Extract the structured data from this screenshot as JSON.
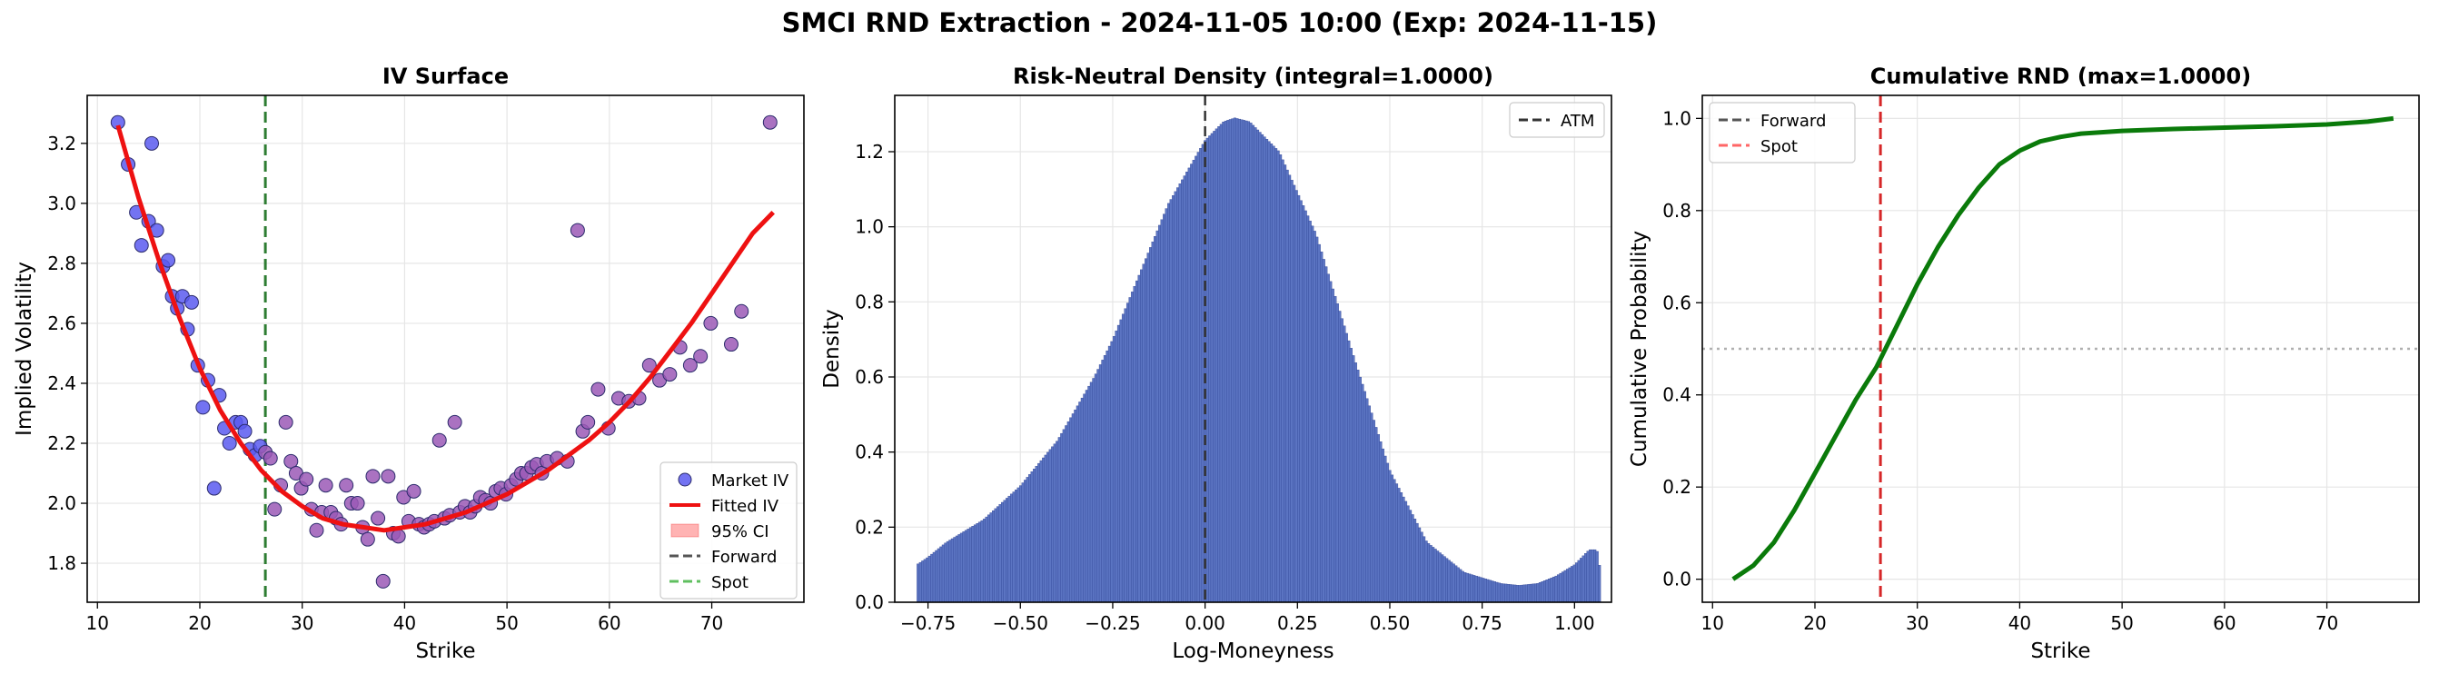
{
  "suptitle": "SMCI RND Extraction - 2024-11-05 10:00 (Exp: 2024-11-15)",
  "colors": {
    "market_face": "#5a5af0",
    "market_face_late": "#9b59b6",
    "market_edge": "#2c2c6c",
    "fitted": "#ee1111",
    "ci": "#ffb3b3",
    "forward": "#555555",
    "spot_green": "#5fbf5f",
    "spot_red": "#ff6666",
    "forward_line_iv": "#2e7d32",
    "bars": "#5b74c2",
    "bars_edge": "#2a3f8f",
    "atm": "#333333",
    "cdf": "#0a7a0a",
    "red_dash": "#d62728",
    "half_line": "#b0b0b0",
    "grid": "#e6e6e6"
  },
  "chart_data": [
    {
      "type": "scatter",
      "title": "IV Surface",
      "xlabel": "Strike",
      "ylabel": "Implied Volatility",
      "xlim": [
        9,
        79
      ],
      "ylim": [
        1.67,
        3.36
      ],
      "xticks": [
        10,
        20,
        30,
        40,
        50,
        60,
        70
      ],
      "yticks": [
        1.8,
        2.0,
        2.2,
        2.4,
        2.6,
        2.8,
        3.0,
        3.2
      ],
      "grid": true,
      "legend_position": "lower-right",
      "legend": [
        "Market IV",
        "Fitted IV",
        "95% CI",
        "Forward",
        "Spot"
      ],
      "forward_strike": 26.4,
      "market_points": [
        [
          12.0,
          3.27
        ],
        [
          13.0,
          3.13
        ],
        [
          13.8,
          2.97
        ],
        [
          14.3,
          2.86
        ],
        [
          15.0,
          2.94
        ],
        [
          15.3,
          3.2
        ],
        [
          15.8,
          2.91
        ],
        [
          16.4,
          2.79
        ],
        [
          16.9,
          2.81
        ],
        [
          17.3,
          2.69
        ],
        [
          17.8,
          2.65
        ],
        [
          18.3,
          2.69
        ],
        [
          18.8,
          2.58
        ],
        [
          19.2,
          2.67
        ],
        [
          19.8,
          2.46
        ],
        [
          20.3,
          2.32
        ],
        [
          20.8,
          2.41
        ],
        [
          21.4,
          2.05
        ],
        [
          21.9,
          2.36
        ],
        [
          22.4,
          2.25
        ],
        [
          22.9,
          2.2
        ],
        [
          23.5,
          2.27
        ],
        [
          24.0,
          2.27
        ],
        [
          24.4,
          2.24
        ],
        [
          24.9,
          2.18
        ],
        [
          25.4,
          2.16
        ],
        [
          25.9,
          2.19
        ],
        [
          26.4,
          2.17
        ],
        [
          26.9,
          2.15
        ],
        [
          27.3,
          1.98
        ],
        [
          27.9,
          2.06
        ],
        [
          28.4,
          2.27
        ],
        [
          28.9,
          2.14
        ],
        [
          29.4,
          2.1
        ],
        [
          29.9,
          2.05
        ],
        [
          30.4,
          2.08
        ],
        [
          30.9,
          1.98
        ],
        [
          31.4,
          1.91
        ],
        [
          31.9,
          1.97
        ],
        [
          32.3,
          2.06
        ],
        [
          32.8,
          1.97
        ],
        [
          33.3,
          1.95
        ],
        [
          33.8,
          1.93
        ],
        [
          34.3,
          2.06
        ],
        [
          34.8,
          2.0
        ],
        [
          35.4,
          2.0
        ],
        [
          35.9,
          1.92
        ],
        [
          36.4,
          1.88
        ],
        [
          36.9,
          2.09
        ],
        [
          37.4,
          1.95
        ],
        [
          37.9,
          1.74
        ],
        [
          38.4,
          2.09
        ],
        [
          38.9,
          1.9
        ],
        [
          39.4,
          1.89
        ],
        [
          39.9,
          2.02
        ],
        [
          40.4,
          1.94
        ],
        [
          40.9,
          2.04
        ],
        [
          41.4,
          1.93
        ],
        [
          41.9,
          1.92
        ],
        [
          42.4,
          1.93
        ],
        [
          42.9,
          1.94
        ],
        [
          43.4,
          2.21
        ],
        [
          43.9,
          1.95
        ],
        [
          44.4,
          1.96
        ],
        [
          44.9,
          2.27
        ],
        [
          45.4,
          1.97
        ],
        [
          45.9,
          1.99
        ],
        [
          46.4,
          1.97
        ],
        [
          46.9,
          1.99
        ],
        [
          47.4,
          2.02
        ],
        [
          47.9,
          2.01
        ],
        [
          48.4,
          2.0
        ],
        [
          48.9,
          2.04
        ],
        [
          49.4,
          2.05
        ],
        [
          49.9,
          2.03
        ],
        [
          50.4,
          2.06
        ],
        [
          50.9,
          2.08
        ],
        [
          51.4,
          2.1
        ],
        [
          51.9,
          2.1
        ],
        [
          52.4,
          2.12
        ],
        [
          52.9,
          2.13
        ],
        [
          53.4,
          2.1
        ],
        [
          53.9,
          2.14
        ],
        [
          54.9,
          2.15
        ],
        [
          55.9,
          2.14
        ],
        [
          56.9,
          2.91
        ],
        [
          57.4,
          2.24
        ],
        [
          57.9,
          2.27
        ],
        [
          58.9,
          2.38
        ],
        [
          59.9,
          2.25
        ],
        [
          60.9,
          2.35
        ],
        [
          61.9,
          2.34
        ],
        [
          62.9,
          2.35
        ],
        [
          63.9,
          2.46
        ],
        [
          64.9,
          2.41
        ],
        [
          65.9,
          2.43
        ],
        [
          66.9,
          2.52
        ],
        [
          67.9,
          2.46
        ],
        [
          68.9,
          2.49
        ],
        [
          69.9,
          2.6
        ],
        [
          71.9,
          2.53
        ],
        [
          72.9,
          2.64
        ],
        [
          75.7,
          3.27
        ]
      ],
      "fitted_points": [
        [
          12,
          3.26
        ],
        [
          14,
          3.02
        ],
        [
          16,
          2.81
        ],
        [
          18,
          2.62
        ],
        [
          20,
          2.45
        ],
        [
          22,
          2.31
        ],
        [
          24,
          2.2
        ],
        [
          26,
          2.11
        ],
        [
          28,
          2.04
        ],
        [
          30,
          1.99
        ],
        [
          32,
          1.95
        ],
        [
          34,
          1.93
        ],
        [
          36,
          1.92
        ],
        [
          38,
          1.91
        ],
        [
          40,
          1.92
        ],
        [
          42,
          1.93
        ],
        [
          44,
          1.95
        ],
        [
          46,
          1.97
        ],
        [
          48,
          2.0
        ],
        [
          50,
          2.03
        ],
        [
          52,
          2.07
        ],
        [
          54,
          2.11
        ],
        [
          56,
          2.16
        ],
        [
          58,
          2.21
        ],
        [
          60,
          2.27
        ],
        [
          62,
          2.34
        ],
        [
          64,
          2.42
        ],
        [
          66,
          2.51
        ],
        [
          68,
          2.6
        ],
        [
          70,
          2.7
        ],
        [
          72,
          2.8
        ],
        [
          74,
          2.9
        ],
        [
          76,
          2.97
        ]
      ]
    },
    {
      "type": "bar",
      "title": "Risk-Neutral Density (integral=1.0000)",
      "xlabel": "Log-Moneyness",
      "ylabel": "Density",
      "xlim": [
        -0.84,
        1.1
      ],
      "ylim": [
        0,
        1.35
      ],
      "xticks": [
        -0.75,
        -0.5,
        -0.25,
        0.0,
        0.25,
        0.5,
        0.75,
        1.0
      ],
      "yticks": [
        0.0,
        0.2,
        0.4,
        0.6,
        0.8,
        1.0,
        1.2
      ],
      "grid": true,
      "legend_position": "top-right",
      "legend": [
        "ATM"
      ],
      "atm": 0.0,
      "x_start": -0.78,
      "x_end": 1.07,
      "bar_count": 300,
      "density_knots": [
        [
          -0.78,
          0.1
        ],
        [
          -0.75,
          0.12
        ],
        [
          -0.7,
          0.16
        ],
        [
          -0.6,
          0.22
        ],
        [
          -0.5,
          0.31
        ],
        [
          -0.4,
          0.43
        ],
        [
          -0.3,
          0.6
        ],
        [
          -0.25,
          0.7
        ],
        [
          -0.2,
          0.82
        ],
        [
          -0.1,
          1.06
        ],
        [
          0.0,
          1.23
        ],
        [
          0.05,
          1.28
        ],
        [
          0.08,
          1.29
        ],
        [
          0.12,
          1.28
        ],
        [
          0.2,
          1.2
        ],
        [
          0.3,
          0.98
        ],
        [
          0.4,
          0.66
        ],
        [
          0.5,
          0.35
        ],
        [
          0.6,
          0.16
        ],
        [
          0.7,
          0.08
        ],
        [
          0.8,
          0.05
        ],
        [
          0.85,
          0.045
        ],
        [
          0.9,
          0.05
        ],
        [
          0.95,
          0.07
        ],
        [
          1.0,
          0.1
        ],
        [
          1.04,
          0.14
        ],
        [
          1.06,
          0.14
        ],
        [
          1.07,
          0.08
        ]
      ]
    },
    {
      "type": "line",
      "title": "Cumulative RND (max=1.0000)",
      "xlabel": "Strike",
      "ylabel": "Cumulative Probability",
      "xlim": [
        9,
        79
      ],
      "ylim": [
        -0.05,
        1.05
      ],
      "xticks": [
        10,
        20,
        30,
        40,
        50,
        60,
        70
      ],
      "yticks": [
        0.0,
        0.2,
        0.4,
        0.6,
        0.8,
        1.0
      ],
      "grid": true,
      "legend_position": "top-left",
      "legend": [
        "Forward",
        "Spot"
      ],
      "forward_strike": 26.4,
      "half_line": 0.5,
      "cdf_points": [
        [
          12,
          0.0
        ],
        [
          14,
          0.03
        ],
        [
          16,
          0.08
        ],
        [
          18,
          0.15
        ],
        [
          20,
          0.23
        ],
        [
          22,
          0.31
        ],
        [
          24,
          0.39
        ],
        [
          26,
          0.46
        ],
        [
          28,
          0.55
        ],
        [
          30,
          0.64
        ],
        [
          32,
          0.72
        ],
        [
          34,
          0.79
        ],
        [
          36,
          0.85
        ],
        [
          38,
          0.9
        ],
        [
          40,
          0.93
        ],
        [
          42,
          0.95
        ],
        [
          44,
          0.96
        ],
        [
          46,
          0.967
        ],
        [
          50,
          0.973
        ],
        [
          55,
          0.977
        ],
        [
          60,
          0.98
        ],
        [
          65,
          0.983
        ],
        [
          70,
          0.987
        ],
        [
          74,
          0.993
        ],
        [
          76.5,
          1.0
        ]
      ]
    }
  ]
}
